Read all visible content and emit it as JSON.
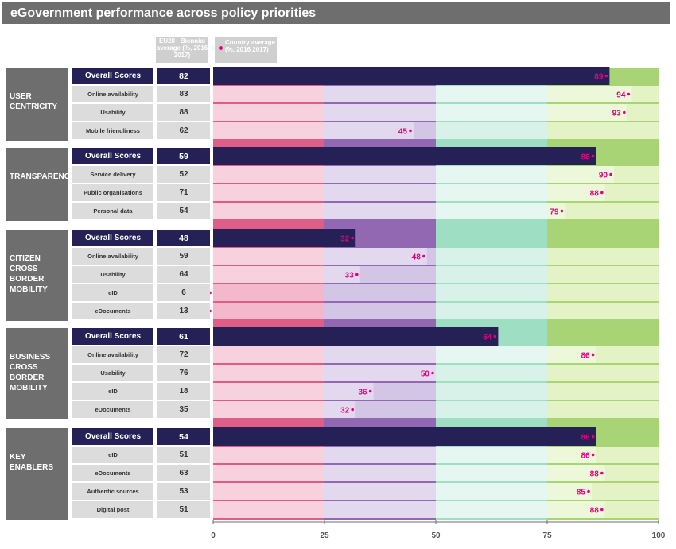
{
  "title": "eGovernment performance across policy priorities",
  "header": {
    "eu_label": "EU28+ Biennial average (%, 2016 2017)",
    "country_label": "Country average (%, 2016 2017)"
  },
  "colors": {
    "overall_bar": "#252157",
    "value_text": "#e6007e",
    "band_0_25": "#f4b8cd",
    "band_25_50": "#d2c5e6",
    "band_50_75": "#d9f2e9",
    "band_75_100": "#e4f3c6",
    "strong_0_25": "#de5e88",
    "strong_25_50": "#9268b3",
    "strong_50_75": "#9edec2",
    "strong_75_100": "#a8d476"
  },
  "chart_data": {
    "type": "bar",
    "orientation": "horizontal",
    "xlim": [
      0,
      100
    ],
    "xticks": [
      0,
      25,
      50,
      75,
      100
    ],
    "series": [
      {
        "name": "EU28+ Biennial average (%, 2016 2017)"
      },
      {
        "name": "Country average (%, 2016 2017)"
      }
    ],
    "groups": [
      {
        "name": "USER CENTRICITY",
        "rows": [
          {
            "label": "Overall Scores",
            "overall": true,
            "eu": 82,
            "country": 89
          },
          {
            "label": "Online availability",
            "eu": 83,
            "country": 94
          },
          {
            "label": "Usability",
            "eu": 88,
            "country": 93
          },
          {
            "label": "Mobile friendliness",
            "eu": 62,
            "country": 45
          }
        ]
      },
      {
        "name": "TRANSPARENCY",
        "rows": [
          {
            "label": "Overall Scores",
            "overall": true,
            "eu": 59,
            "country": 86
          },
          {
            "label": "Service delivery",
            "eu": 52,
            "country": 90
          },
          {
            "label": "Public organisations",
            "eu": 71,
            "country": 88
          },
          {
            "label": "Personal data",
            "eu": 54,
            "country": 79
          }
        ]
      },
      {
        "name": "CITIZEN CROSS BORDER MOBILITY",
        "rows": [
          {
            "label": "Overall Scores",
            "overall": true,
            "eu": 48,
            "country": 32
          },
          {
            "label": "Online availability",
            "eu": 59,
            "country": 48
          },
          {
            "label": "Usability",
            "eu": 64,
            "country": 33
          },
          {
            "label": "eID",
            "eu": 6,
            "country": 0
          },
          {
            "label": "eDocuments",
            "eu": 13,
            "country": 0
          }
        ]
      },
      {
        "name": "BUSINESS CROSS BORDER MOBILITY",
        "rows": [
          {
            "label": "Overall Scores",
            "overall": true,
            "eu": 61,
            "country": 64
          },
          {
            "label": "Online availability",
            "eu": 72,
            "country": 86
          },
          {
            "label": "Usability",
            "eu": 76,
            "country": 50
          },
          {
            "label": "eID",
            "eu": 18,
            "country": 36
          },
          {
            "label": "eDocuments",
            "eu": 35,
            "country": 32
          }
        ]
      },
      {
        "name": "KEY ENABLERS",
        "rows": [
          {
            "label": "Overall Scores",
            "overall": true,
            "eu": 54,
            "country": 86
          },
          {
            "label": "eID",
            "eu": 51,
            "country": 86
          },
          {
            "label": "eDocuments",
            "eu": 63,
            "country": 88
          },
          {
            "label": "Authentic sources",
            "eu": 53,
            "country": 85
          },
          {
            "label": "Digital post",
            "eu": 51,
            "country": 88
          }
        ]
      }
    ]
  }
}
